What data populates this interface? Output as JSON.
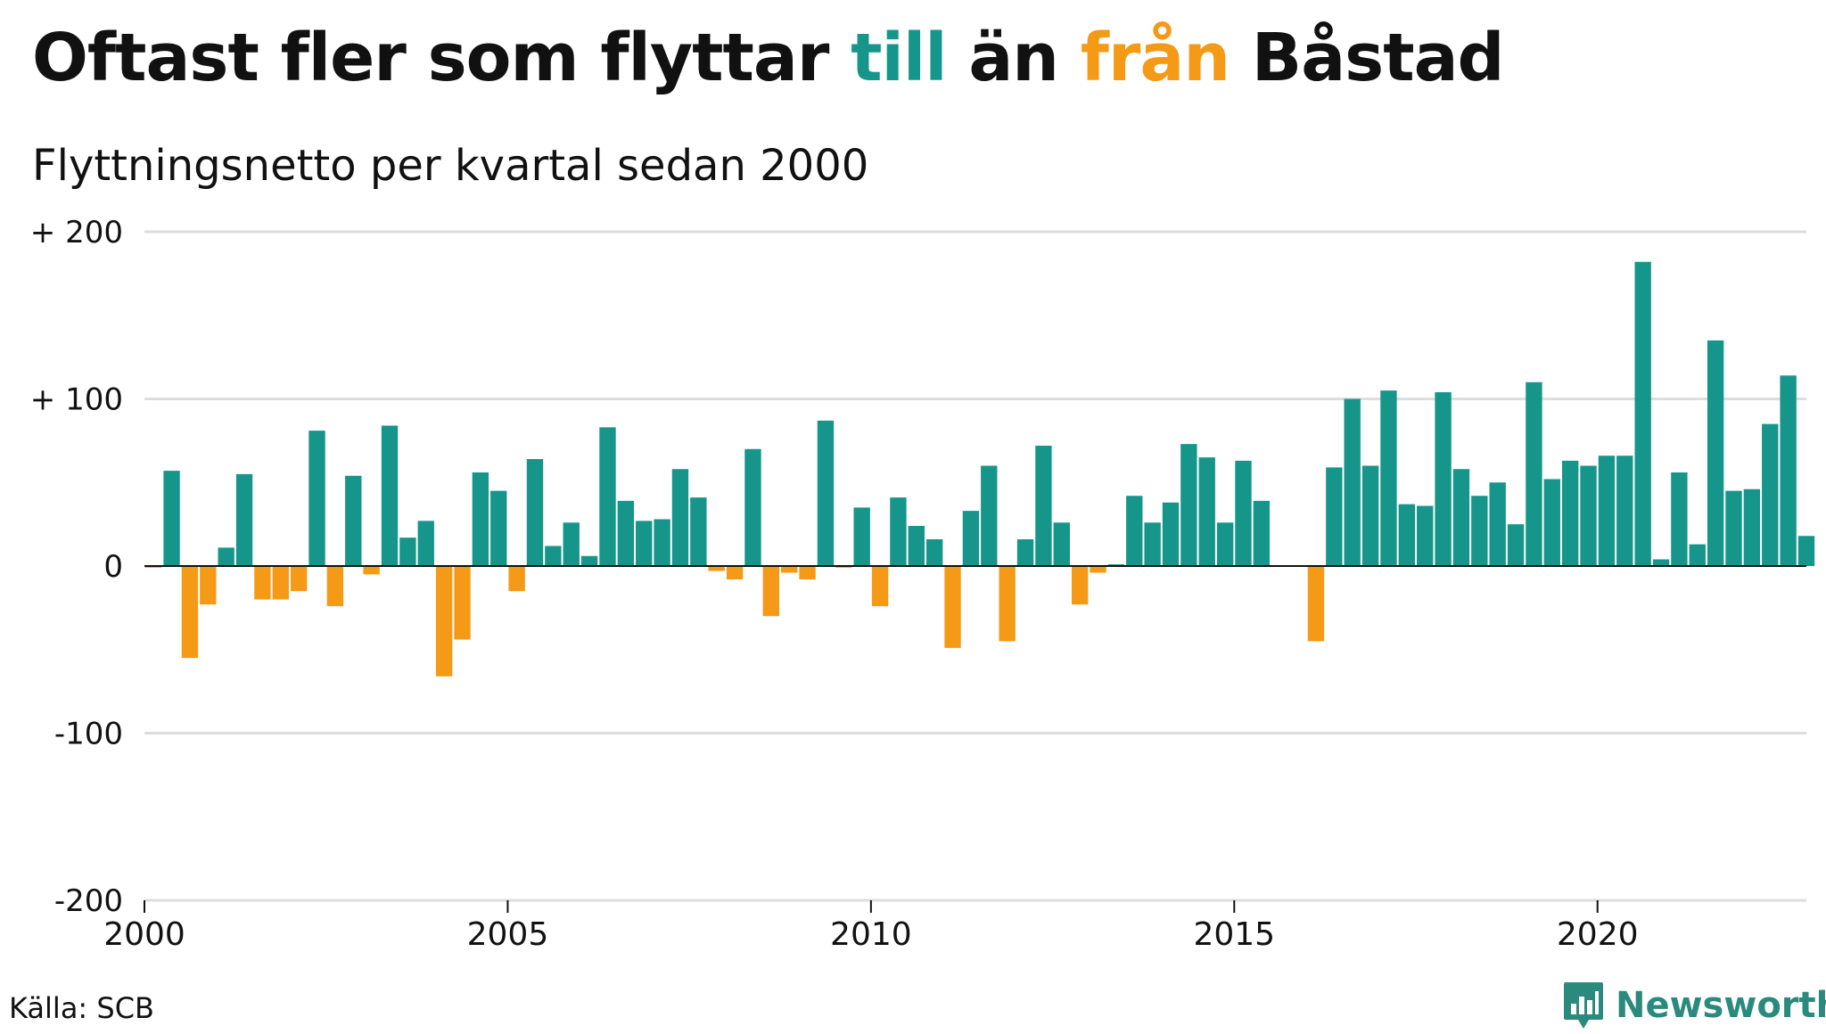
{
  "title": {
    "part1": "Oftast fler som flyttar ",
    "till": "till",
    "part2": " än ",
    "fran": "från",
    "part3": " Båstad"
  },
  "subtitle": "Flyttningsnetto per kvartal sedan 2000",
  "source": "Källa: SCB",
  "brand": "Newsworthy",
  "colors": {
    "positive": "#16968a",
    "negative": "#f59a17",
    "grid": "#dddddd",
    "brand": "#2a8a7e"
  },
  "chart_data": {
    "type": "bar",
    "title": "Oftast fler som flyttar till än från Båstad",
    "subtitle": "Flyttningsnetto per kvartal sedan 2000",
    "x_start_year": 2000,
    "periods_per_year": 4,
    "xlim": [
      2000,
      2022.875
    ],
    "xticks": [
      2000,
      2005,
      2010,
      2015,
      2020
    ],
    "ylim": [
      -200,
      200
    ],
    "yticks": [
      {
        "value": 200,
        "label": "+ 200"
      },
      {
        "value": 100,
        "label": "+ 100"
      },
      {
        "value": 0,
        "label": "0"
      },
      {
        "value": -100,
        "label": "-100"
      },
      {
        "value": -200,
        "label": "-200"
      }
    ],
    "grid": true,
    "values": [
      -1,
      57,
      -55,
      -23,
      11,
      55,
      -20,
      -20,
      -15,
      81,
      -24,
      54,
      -5,
      84,
      17,
      27,
      -66,
      -44,
      56,
      45,
      -15,
      64,
      12,
      26,
      6,
      83,
      39,
      27,
      28,
      58,
      41,
      -3,
      -8,
      70,
      -30,
      -4,
      -8,
      87,
      -1,
      35,
      -24,
      41,
      24,
      16,
      -49,
      33,
      60,
      -45,
      16,
      72,
      26,
      -23,
      -4,
      1,
      42,
      26,
      38,
      73,
      65,
      26,
      63,
      39,
      0,
      0,
      -45,
      59,
      100,
      60,
      105,
      37,
      36,
      104,
      58,
      42,
      50,
      25,
      110,
      52,
      63,
      60,
      66,
      66,
      182,
      4,
      56,
      13,
      135,
      45,
      46,
      85,
      114,
      18
    ]
  }
}
